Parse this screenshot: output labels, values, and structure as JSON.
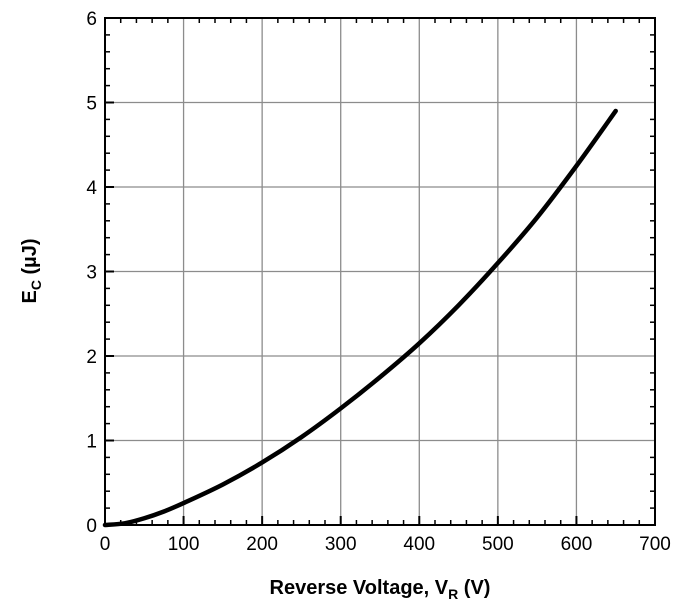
{
  "chart_data": {
    "type": "line",
    "xlabel": {
      "main": "Reverse Voltage, V",
      "sub": "R",
      "suffix": " (V)"
    },
    "ylabel": {
      "main": "E",
      "sub": "C",
      "suffix": " (µJ)"
    },
    "xlim": [
      0,
      700
    ],
    "ylim": [
      0,
      6
    ],
    "x_ticks": [
      "0",
      "100",
      "200",
      "300",
      "400",
      "500",
      "600",
      "700"
    ],
    "y_ticks": [
      "0",
      "1",
      "2",
      "3",
      "4",
      "5",
      "6"
    ],
    "grid": true,
    "series": [
      {
        "color": "#000000",
        "x": [
          0,
          25,
          50,
          75,
          100,
          150,
          200,
          250,
          300,
          350,
          400,
          450,
          500,
          550,
          600,
          650
        ],
        "y": [
          0,
          0.02,
          0.08,
          0.16,
          0.26,
          0.48,
          0.74,
          1.04,
          1.38,
          1.75,
          2.15,
          2.6,
          3.1,
          3.64,
          4.25,
          4.9
        ]
      }
    ]
  }
}
